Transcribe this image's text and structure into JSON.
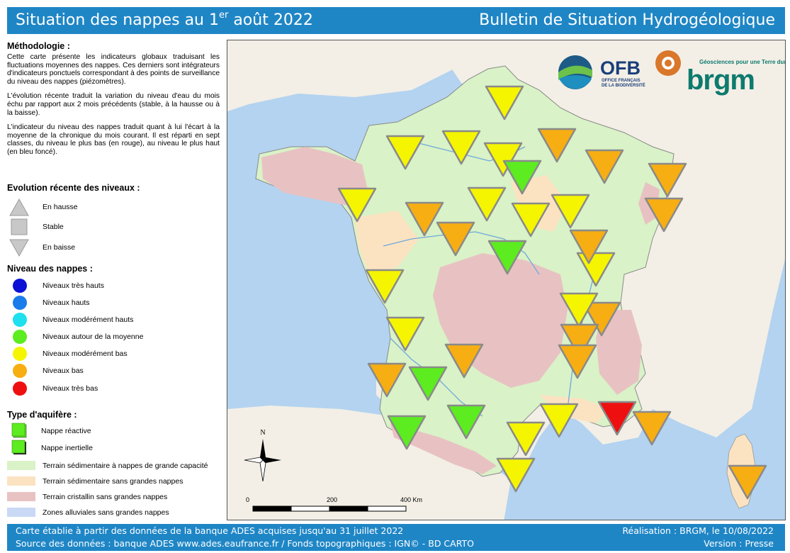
{
  "header": {
    "title_prefix": "Situation des nappes au 1",
    "title_sup": "er",
    "title_suffix": " août 2022",
    "subtitle": "Bulletin de Situation Hydrogéologique"
  },
  "methodology": {
    "heading": "Méthodologie :",
    "p1": "Cette carte présente les indicateurs globaux traduisant les fluctuations moyennes des nappes. Ces derniers sont intégrateurs d'indicateurs ponctuels correspondant à des points de surveillance du niveau des nappes (piézomètres).",
    "p2": "L'évolution récente traduit la variation du niveau d'eau du mois échu par rapport aux 2 mois précédents (stable, à la hausse ou à la baisse).",
    "p3": "L'indicateur du niveau des nappes traduit quant à lui l'écart à la moyenne de la chronique du mois courant. Il est réparti en sept classes, du niveau le plus bas (en rouge), au niveau le plus haut (en bleu foncé)."
  },
  "evolution": {
    "heading": "Evolution récente des niveaux :",
    "items": [
      {
        "label": "En hausse",
        "icon": "triangle-up-icon"
      },
      {
        "label": "Stable",
        "icon": "square-icon"
      },
      {
        "label": "En baisse",
        "icon": "triangle-down-icon"
      }
    ]
  },
  "levels": {
    "heading": "Niveau des nappes :",
    "items": [
      {
        "label": "Niveaux très hauts",
        "color": "#0b12d6"
      },
      {
        "label": "Niveaux hauts",
        "color": "#1a7bea"
      },
      {
        "label": "Niveaux modérément hauts",
        "color": "#1ee0ee"
      },
      {
        "label": "Niveaux autour de la moyenne",
        "color": "#5cec20"
      },
      {
        "label": "Niveaux modérément bas",
        "color": "#f5f500"
      },
      {
        "label": "Niveaux bas",
        "color": "#f7ae12"
      },
      {
        "label": "Niveaux très bas",
        "color": "#ee1010"
      }
    ]
  },
  "aquifer": {
    "heading": "Type d'aquifère :",
    "items": [
      {
        "label": "Nappe réactive"
      },
      {
        "label": "Nappe inertielle"
      }
    ],
    "terrains": [
      {
        "label": "Terrain sédimentaire à nappes de grande capacité",
        "color": "#d9f2c7"
      },
      {
        "label": "Terrain sédimentaire sans grandes nappes",
        "color": "#fbe3c2"
      },
      {
        "label": "Terrain cristallin sans grandes nappes",
        "color": "#e8c2c2"
      },
      {
        "label": "Zones alluviales sans grandes nappes",
        "color": "#c9d9f5"
      }
    ]
  },
  "map": {
    "north_label": "N",
    "scale_labels": [
      "0",
      "200",
      "400 Km"
    ],
    "markers": [
      {
        "level": 4,
        "trend": "down",
        "name": "marker-picardie"
      },
      {
        "level": 4,
        "trend": "down",
        "name": "marker-normandie-cotentin"
      },
      {
        "level": 4,
        "trend": "down",
        "name": "marker-normandie-seine"
      },
      {
        "level": 4,
        "trend": "down",
        "name": "marker-ile-de-france-nord"
      },
      {
        "level": 5,
        "trend": "down",
        "name": "marker-champagne"
      },
      {
        "level": 5,
        "trend": "down",
        "name": "marker-lorraine"
      },
      {
        "level": 5,
        "trend": "down",
        "name": "marker-alsace-nord"
      },
      {
        "level": 3,
        "trend": "down",
        "name": "marker-ile-de-france"
      },
      {
        "level": 4,
        "trend": "down",
        "name": "marker-bretagne"
      },
      {
        "level": 5,
        "trend": "down",
        "name": "marker-basse-normandie"
      },
      {
        "level": 4,
        "trend": "down",
        "name": "marker-beauce"
      },
      {
        "level": 4,
        "trend": "down",
        "name": "marker-gatinais"
      },
      {
        "level": 4,
        "trend": "down",
        "name": "marker-bourgogne-nord"
      },
      {
        "level": 5,
        "trend": "down",
        "name": "marker-alsace-sud"
      },
      {
        "level": 5,
        "trend": "down",
        "name": "marker-pays-de-loire"
      },
      {
        "level": 3,
        "trend": "down",
        "name": "marker-berry"
      },
      {
        "level": 4,
        "trend": "down",
        "name": "marker-franche-comte"
      },
      {
        "level": 5,
        "trend": "down",
        "name": "marker-bresse"
      },
      {
        "level": 4,
        "trend": "down",
        "name": "marker-vendee"
      },
      {
        "level": 5,
        "trend": "down",
        "name": "marker-saone"
      },
      {
        "level": 4,
        "trend": "down",
        "name": "marker-jura"
      },
      {
        "level": 4,
        "trend": "down",
        "name": "marker-charentes"
      },
      {
        "level": 5,
        "trend": "down",
        "name": "marker-lyonnais"
      },
      {
        "level": 5,
        "trend": "down",
        "name": "marker-rhone"
      },
      {
        "level": 5,
        "trend": "down",
        "name": "marker-limousin"
      },
      {
        "level": 5,
        "trend": "down",
        "name": "marker-gironde"
      },
      {
        "level": 3,
        "trend": "down",
        "name": "marker-landes-nord"
      },
      {
        "level": 3,
        "trend": "down",
        "name": "marker-landes-sud"
      },
      {
        "level": 3,
        "trend": "down",
        "name": "marker-garonne"
      },
      {
        "level": 4,
        "trend": "down",
        "name": "marker-languedoc"
      },
      {
        "level": 6,
        "trend": "down",
        "name": "marker-vaucluse"
      },
      {
        "level": 5,
        "trend": "down",
        "name": "marker-provence"
      },
      {
        "level": 4,
        "trend": "down",
        "name": "marker-toulouse"
      },
      {
        "level": 4,
        "trend": "down",
        "name": "marker-roussillon"
      },
      {
        "level": 5,
        "trend": "down",
        "name": "marker-corse"
      }
    ]
  },
  "logos": {
    "ofb_text": "OFB",
    "ofb_sub1": "OFFICE FRANÇAIS",
    "ofb_sub2": "DE LA BIODIVERSITÉ",
    "brgm_tagline": "Géosciences pour une Terre durable",
    "brgm_text": "brgm"
  },
  "footer": {
    "line1": "Carte établie à partir des données de la banque ADES acquises jusqu'au 31 juillet 2022",
    "line2": "Source des données : banque ADES www.ades.eaufrance.fr / Fonds topographiques : IGN© - BD CARTO",
    "right1": "Réalisation : BRGM, le 10/08/2022",
    "right2": "Version : Presse"
  }
}
